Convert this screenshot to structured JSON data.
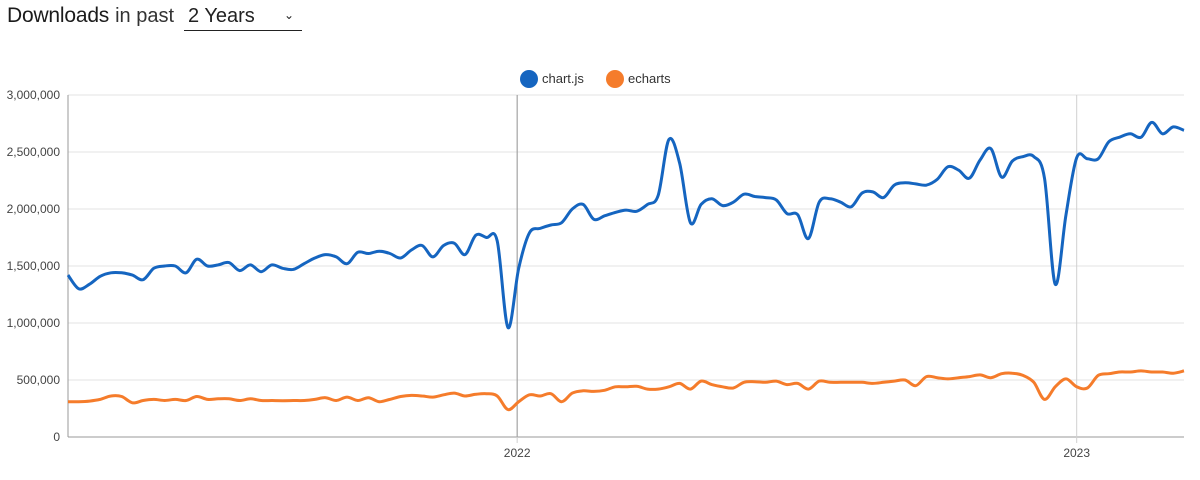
{
  "header": {
    "title_strong": "Downloads",
    "title_rest": "in past",
    "period_selected": "2 Years",
    "chevron_icon": "chevron-down-icon"
  },
  "chart_data": {
    "type": "line",
    "title": "",
    "xlabel": "",
    "ylabel": "",
    "x_ticks": [
      "2022",
      "2023"
    ],
    "y_ticks": [
      "0",
      "500,000",
      "1,000,000",
      "1,500,000",
      "2,000,000",
      "2,500,000",
      "3,000,000"
    ],
    "ylim": [
      0,
      3000000
    ],
    "legend_position": "top-center",
    "grid": true,
    "series": [
      {
        "name": "chart.js",
        "color": "#1565c0",
        "points": [
          [
            "2021-03-14",
            1420000
          ],
          [
            "2021-03-21",
            1300000
          ],
          [
            "2021-03-28",
            1340000
          ],
          [
            "2021-04-04",
            1410000
          ],
          [
            "2021-04-11",
            1440000
          ],
          [
            "2021-04-18",
            1440000
          ],
          [
            "2021-04-25",
            1420000
          ],
          [
            "2021-05-02",
            1380000
          ],
          [
            "2021-05-09",
            1480000
          ],
          [
            "2021-05-16",
            1500000
          ],
          [
            "2021-05-23",
            1500000
          ],
          [
            "2021-05-30",
            1440000
          ],
          [
            "2021-06-06",
            1560000
          ],
          [
            "2021-06-13",
            1500000
          ],
          [
            "2021-06-20",
            1510000
          ],
          [
            "2021-06-27",
            1530000
          ],
          [
            "2021-07-04",
            1460000
          ],
          [
            "2021-07-11",
            1510000
          ],
          [
            "2021-07-18",
            1450000
          ],
          [
            "2021-07-25",
            1510000
          ],
          [
            "2021-08-01",
            1480000
          ],
          [
            "2021-08-08",
            1470000
          ],
          [
            "2021-08-15",
            1520000
          ],
          [
            "2021-08-22",
            1570000
          ],
          [
            "2021-08-29",
            1600000
          ],
          [
            "2021-09-05",
            1580000
          ],
          [
            "2021-09-12",
            1520000
          ],
          [
            "2021-09-19",
            1620000
          ],
          [
            "2021-09-26",
            1610000
          ],
          [
            "2021-10-03",
            1630000
          ],
          [
            "2021-10-10",
            1610000
          ],
          [
            "2021-10-17",
            1570000
          ],
          [
            "2021-10-24",
            1640000
          ],
          [
            "2021-10-31",
            1680000
          ],
          [
            "2021-11-07",
            1580000
          ],
          [
            "2021-11-14",
            1680000
          ],
          [
            "2021-11-21",
            1700000
          ],
          [
            "2021-11-28",
            1600000
          ],
          [
            "2021-12-05",
            1770000
          ],
          [
            "2021-12-12",
            1750000
          ],
          [
            "2021-12-19",
            1720000
          ],
          [
            "2021-12-26",
            960000
          ],
          [
            "2022-01-02",
            1480000
          ],
          [
            "2022-01-09",
            1790000
          ],
          [
            "2022-01-16",
            1830000
          ],
          [
            "2022-01-23",
            1860000
          ],
          [
            "2022-01-30",
            1880000
          ],
          [
            "2022-02-06",
            2000000
          ],
          [
            "2022-02-13",
            2040000
          ],
          [
            "2022-02-20",
            1910000
          ],
          [
            "2022-02-27",
            1940000
          ],
          [
            "2022-03-06",
            1970000
          ],
          [
            "2022-03-13",
            1990000
          ],
          [
            "2022-03-20",
            1980000
          ],
          [
            "2022-03-27",
            2040000
          ],
          [
            "2022-04-03",
            2120000
          ],
          [
            "2022-04-10",
            2610000
          ],
          [
            "2022-04-17",
            2400000
          ],
          [
            "2022-04-24",
            1880000
          ],
          [
            "2022-05-01",
            2040000
          ],
          [
            "2022-05-08",
            2090000
          ],
          [
            "2022-05-15",
            2030000
          ],
          [
            "2022-05-22",
            2060000
          ],
          [
            "2022-05-29",
            2130000
          ],
          [
            "2022-06-05",
            2110000
          ],
          [
            "2022-06-12",
            2100000
          ],
          [
            "2022-06-19",
            2080000
          ],
          [
            "2022-06-26",
            1960000
          ],
          [
            "2022-07-03",
            1950000
          ],
          [
            "2022-07-10",
            1740000
          ],
          [
            "2022-07-17",
            2060000
          ],
          [
            "2022-07-24",
            2090000
          ],
          [
            "2022-07-31",
            2060000
          ],
          [
            "2022-08-07",
            2020000
          ],
          [
            "2022-08-14",
            2140000
          ],
          [
            "2022-08-21",
            2150000
          ],
          [
            "2022-08-28",
            2100000
          ],
          [
            "2022-09-04",
            2210000
          ],
          [
            "2022-09-11",
            2230000
          ],
          [
            "2022-09-18",
            2220000
          ],
          [
            "2022-09-25",
            2210000
          ],
          [
            "2022-10-02",
            2260000
          ],
          [
            "2022-10-09",
            2370000
          ],
          [
            "2022-10-16",
            2340000
          ],
          [
            "2022-10-23",
            2270000
          ],
          [
            "2022-10-30",
            2430000
          ],
          [
            "2022-11-06",
            2530000
          ],
          [
            "2022-11-13",
            2280000
          ],
          [
            "2022-11-20",
            2420000
          ],
          [
            "2022-11-27",
            2460000
          ],
          [
            "2022-12-04",
            2460000
          ],
          [
            "2022-12-11",
            2270000
          ],
          [
            "2022-12-18",
            1340000
          ],
          [
            "2022-12-25",
            1950000
          ],
          [
            "2023-01-01",
            2450000
          ],
          [
            "2023-01-08",
            2440000
          ],
          [
            "2023-01-15",
            2440000
          ],
          [
            "2023-01-22",
            2590000
          ],
          [
            "2023-01-29",
            2630000
          ],
          [
            "2023-02-05",
            2660000
          ],
          [
            "2023-02-12",
            2630000
          ],
          [
            "2023-02-19",
            2760000
          ],
          [
            "2023-02-26",
            2660000
          ],
          [
            "2023-03-05",
            2720000
          ],
          [
            "2023-03-12",
            2690000
          ]
        ]
      },
      {
        "name": "echarts",
        "color": "#f57c2b",
        "points": [
          [
            "2021-03-14",
            310000
          ],
          [
            "2021-03-21",
            310000
          ],
          [
            "2021-03-28",
            315000
          ],
          [
            "2021-04-04",
            330000
          ],
          [
            "2021-04-11",
            360000
          ],
          [
            "2021-04-18",
            355000
          ],
          [
            "2021-04-25",
            300000
          ],
          [
            "2021-05-02",
            320000
          ],
          [
            "2021-05-09",
            330000
          ],
          [
            "2021-05-16",
            320000
          ],
          [
            "2021-05-23",
            330000
          ],
          [
            "2021-05-30",
            320000
          ],
          [
            "2021-06-06",
            355000
          ],
          [
            "2021-06-13",
            330000
          ],
          [
            "2021-06-20",
            335000
          ],
          [
            "2021-06-27",
            335000
          ],
          [
            "2021-07-04",
            320000
          ],
          [
            "2021-07-11",
            335000
          ],
          [
            "2021-07-18",
            320000
          ],
          [
            "2021-07-25",
            320000
          ],
          [
            "2021-08-01",
            318000
          ],
          [
            "2021-08-08",
            320000
          ],
          [
            "2021-08-15",
            320000
          ],
          [
            "2021-08-22",
            330000
          ],
          [
            "2021-08-29",
            345000
          ],
          [
            "2021-09-05",
            320000
          ],
          [
            "2021-09-12",
            350000
          ],
          [
            "2021-09-19",
            320000
          ],
          [
            "2021-09-26",
            345000
          ],
          [
            "2021-10-03",
            310000
          ],
          [
            "2021-10-10",
            330000
          ],
          [
            "2021-10-17",
            355000
          ],
          [
            "2021-10-24",
            365000
          ],
          [
            "2021-10-31",
            360000
          ],
          [
            "2021-11-07",
            350000
          ],
          [
            "2021-11-14",
            370000
          ],
          [
            "2021-11-21",
            385000
          ],
          [
            "2021-11-28",
            360000
          ],
          [
            "2021-12-05",
            375000
          ],
          [
            "2021-12-12",
            380000
          ],
          [
            "2021-12-19",
            360000
          ],
          [
            "2021-12-26",
            240000
          ],
          [
            "2022-01-02",
            310000
          ],
          [
            "2022-01-09",
            370000
          ],
          [
            "2022-01-16",
            360000
          ],
          [
            "2022-01-23",
            380000
          ],
          [
            "2022-01-30",
            310000
          ],
          [
            "2022-02-06",
            385000
          ],
          [
            "2022-02-13",
            405000
          ],
          [
            "2022-02-20",
            400000
          ],
          [
            "2022-02-27",
            410000
          ],
          [
            "2022-03-06",
            440000
          ],
          [
            "2022-03-13",
            440000
          ],
          [
            "2022-03-20",
            445000
          ],
          [
            "2022-03-27",
            420000
          ],
          [
            "2022-04-03",
            420000
          ],
          [
            "2022-04-10",
            440000
          ],
          [
            "2022-04-17",
            470000
          ],
          [
            "2022-04-24",
            420000
          ],
          [
            "2022-05-01",
            490000
          ],
          [
            "2022-05-08",
            460000
          ],
          [
            "2022-05-15",
            440000
          ],
          [
            "2022-05-22",
            430000
          ],
          [
            "2022-05-29",
            480000
          ],
          [
            "2022-06-05",
            485000
          ],
          [
            "2022-06-12",
            480000
          ],
          [
            "2022-06-19",
            490000
          ],
          [
            "2022-06-26",
            460000
          ],
          [
            "2022-07-03",
            470000
          ],
          [
            "2022-07-10",
            420000
          ],
          [
            "2022-07-17",
            490000
          ],
          [
            "2022-07-24",
            480000
          ],
          [
            "2022-07-31",
            480000
          ],
          [
            "2022-08-07",
            480000
          ],
          [
            "2022-08-14",
            480000
          ],
          [
            "2022-08-21",
            470000
          ],
          [
            "2022-08-28",
            480000
          ],
          [
            "2022-09-04",
            490000
          ],
          [
            "2022-09-11",
            500000
          ],
          [
            "2022-09-18",
            450000
          ],
          [
            "2022-09-25",
            530000
          ],
          [
            "2022-10-02",
            520000
          ],
          [
            "2022-10-09",
            510000
          ],
          [
            "2022-10-16",
            520000
          ],
          [
            "2022-10-23",
            530000
          ],
          [
            "2022-10-30",
            545000
          ],
          [
            "2022-11-06",
            520000
          ],
          [
            "2022-11-13",
            555000
          ],
          [
            "2022-11-20",
            560000
          ],
          [
            "2022-11-27",
            540000
          ],
          [
            "2022-12-04",
            480000
          ],
          [
            "2022-12-11",
            330000
          ],
          [
            "2022-12-18",
            440000
          ],
          [
            "2022-12-25",
            510000
          ],
          [
            "2023-01-01",
            440000
          ],
          [
            "2023-01-08",
            430000
          ],
          [
            "2023-01-15",
            540000
          ],
          [
            "2023-01-22",
            555000
          ],
          [
            "2023-01-29",
            570000
          ],
          [
            "2023-02-05",
            570000
          ],
          [
            "2023-02-12",
            580000
          ],
          [
            "2023-02-19",
            570000
          ],
          [
            "2023-02-26",
            570000
          ],
          [
            "2023-03-05",
            560000
          ],
          [
            "2023-03-12",
            580000
          ]
        ]
      }
    ]
  }
}
